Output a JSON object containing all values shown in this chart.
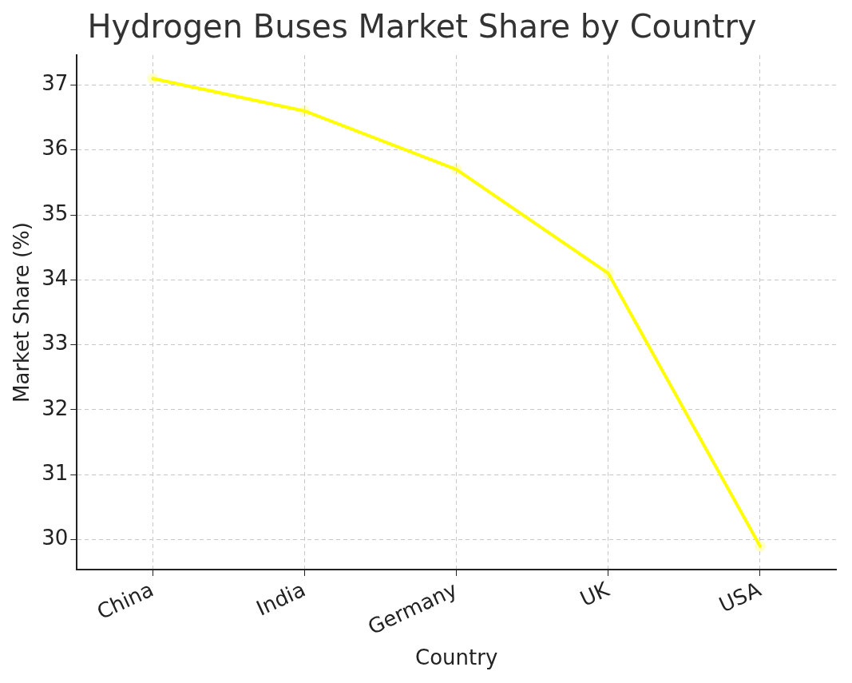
{
  "chart_data": {
    "type": "line",
    "title": "Hydrogen Buses Market Share by Country",
    "xlabel": "Country",
    "ylabel": "Market Share (%)",
    "categories": [
      "China",
      "India",
      "Germany",
      "UK",
      "USA"
    ],
    "series": [
      {
        "color": "#ffff00",
        "values": [
          37.1,
          36.6,
          35.7,
          34.1,
          29.9
        ]
      }
    ],
    "ylim": [
      29.54,
      37.46
    ],
    "yticks": [
      30,
      31,
      32,
      33,
      34,
      35,
      36,
      37
    ],
    "grid": true,
    "marker": "circle",
    "line_style": "solid",
    "legend": false
  }
}
